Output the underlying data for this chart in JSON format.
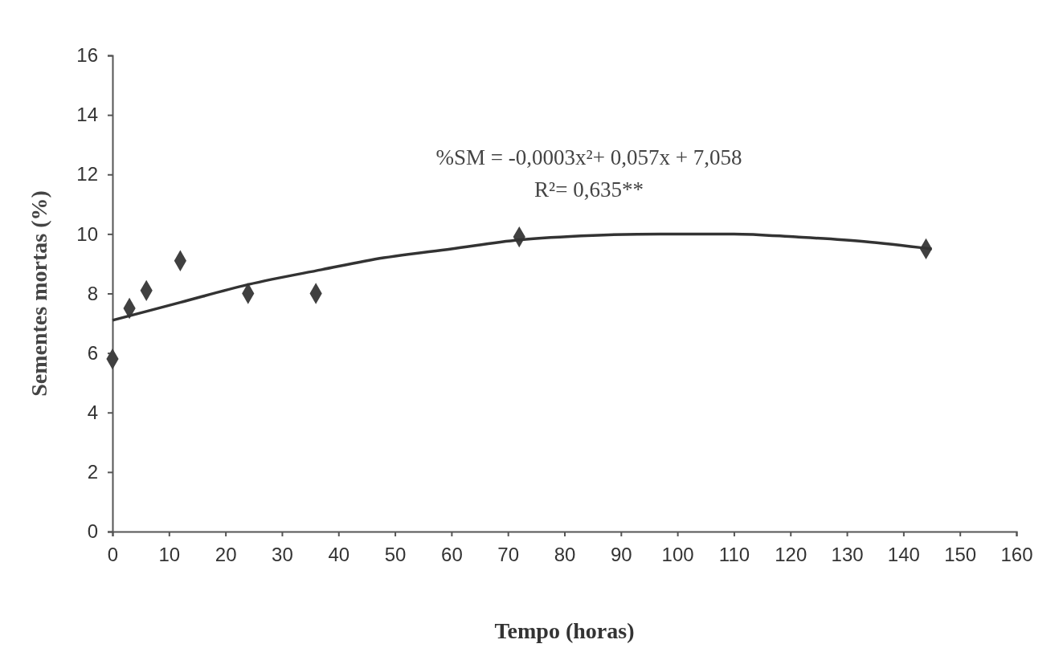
{
  "chart_data": {
    "type": "scatter",
    "xlabel": "Tempo (horas)",
    "ylabel": "Sementes mortas (%)",
    "xlim": [
      0,
      160
    ],
    "xticks": [
      0,
      10,
      20,
      30,
      40,
      50,
      60,
      70,
      80,
      90,
      100,
      110,
      120,
      130,
      140,
      150,
      160
    ],
    "ylim": [
      0,
      16
    ],
    "yticks": [
      0,
      2,
      4,
      6,
      8,
      10,
      12,
      14,
      16
    ],
    "grid": false,
    "annotations": [
      "%SM = -0,0003x²+ 0,057x + 7,058",
      "R²= 0,635**"
    ],
    "series": [
      {
        "type": "scatter",
        "color": "#404040",
        "marker": "diamond",
        "x": [
          0,
          3,
          6,
          12,
          24,
          36,
          72,
          144
        ],
        "values": [
          5.8,
          7.5,
          8.1,
          9.1,
          8.0,
          8.0,
          9.9,
          9.5
        ]
      },
      {
        "type": "line",
        "color": "#333333",
        "marker": "none",
        "line_style": "solid",
        "x": [
          0,
          12,
          24,
          37,
          48,
          60,
          72,
          85,
          97,
          110,
          121,
          133,
          145
        ],
        "values": [
          7.1,
          7.7,
          8.3,
          8.8,
          9.2,
          9.5,
          9.8,
          9.95,
          10.0,
          10.0,
          9.9,
          9.75,
          9.5
        ]
      }
    ]
  }
}
